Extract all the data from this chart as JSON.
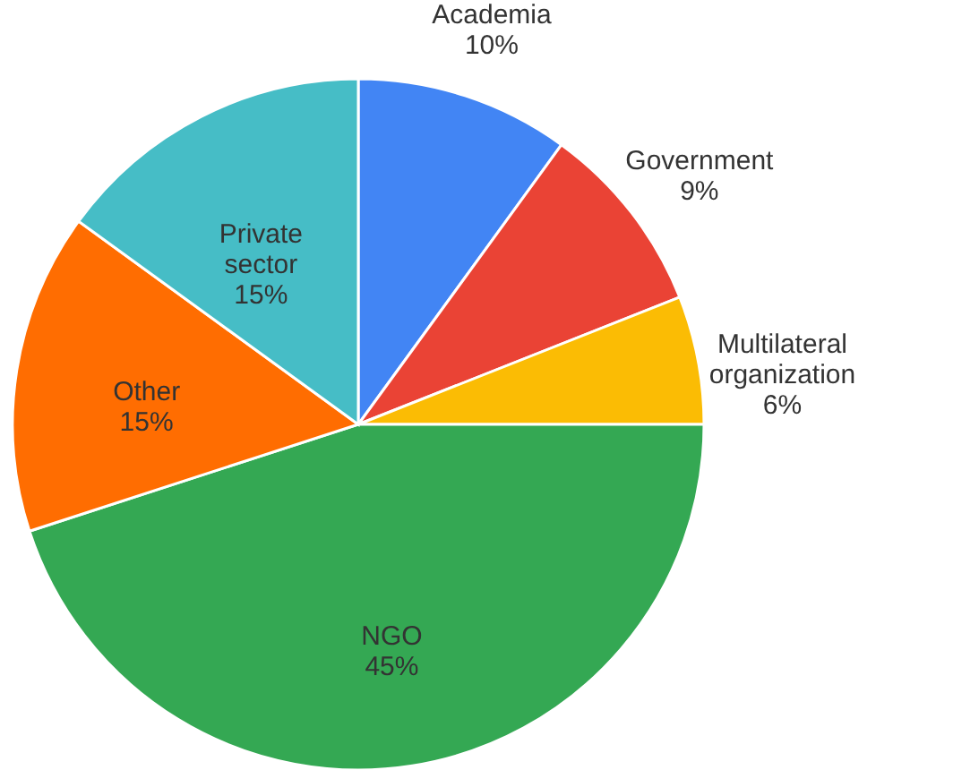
{
  "chart_data": {
    "type": "pie",
    "categories": [
      "Academia",
      "Government",
      "Multilateral organization",
      "NGO",
      "Other",
      "Private sector"
    ],
    "values": [
      10,
      9,
      6,
      45,
      15,
      15
    ],
    "value_labels": [
      "10%",
      "9%",
      "6%",
      "45%",
      "15%",
      "15%"
    ],
    "colors": [
      "#4285f4",
      "#ea4335",
      "#fbbc04",
      "#34a853",
      "#ff6d01",
      "#46bdc6"
    ]
  }
}
